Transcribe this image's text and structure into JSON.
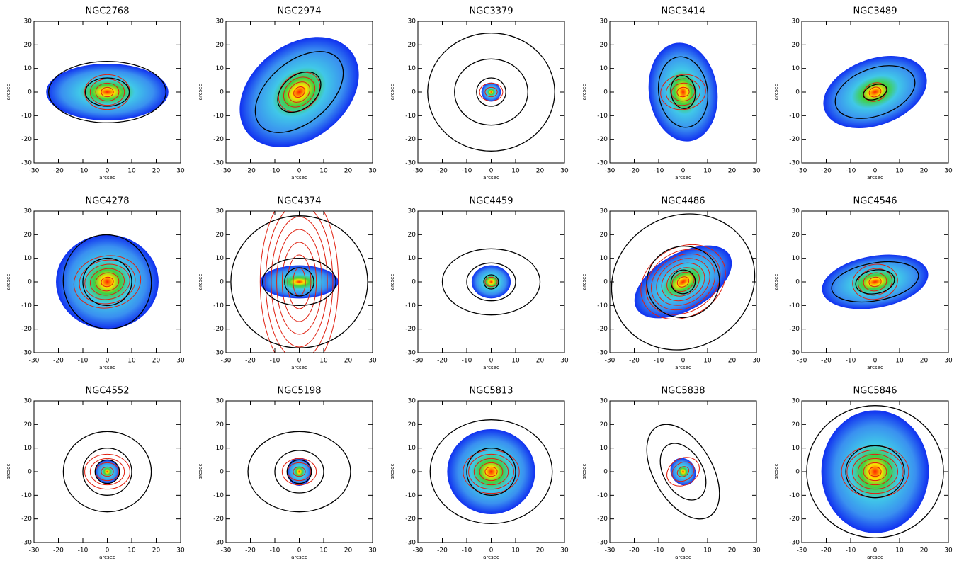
{
  "chart_data": [
    {
      "type": "image",
      "title": "NGC2768",
      "xlabel": "arcsec",
      "ylabel": "arcsec",
      "xlim": [
        -30,
        30
      ],
      "ylim": [
        -30,
        30
      ],
      "xticks": [
        -30,
        -20,
        -10,
        0,
        10,
        20,
        30
      ],
      "yticks": [
        -30,
        -20,
        -10,
        0,
        10,
        20,
        30
      ]
    },
    {
      "type": "image",
      "title": "NGC2974",
      "xlabel": "arcsec",
      "ylabel": "arcsec",
      "xlim": [
        -30,
        30
      ],
      "ylim": [
        -30,
        30
      ],
      "xticks": [
        -30,
        -20,
        -10,
        0,
        10,
        20,
        30
      ],
      "yticks": [
        -30,
        -20,
        -10,
        0,
        10,
        20,
        30
      ]
    },
    {
      "type": "image",
      "title": "NGC3379",
      "xlabel": "arcsec",
      "ylabel": "arcsec",
      "xlim": [
        -30,
        30
      ],
      "ylim": [
        -30,
        30
      ],
      "xticks": [
        -30,
        -20,
        -10,
        0,
        10,
        20,
        30
      ],
      "yticks": [
        -30,
        -20,
        -10,
        0,
        10,
        20,
        30
      ]
    },
    {
      "type": "image",
      "title": "NGC3414",
      "xlabel": "arcsec",
      "ylabel": "arcsec",
      "xlim": [
        -30,
        30
      ],
      "ylim": [
        -30,
        30
      ],
      "xticks": [
        -30,
        -20,
        -10,
        0,
        10,
        20,
        30
      ],
      "yticks": [
        -30,
        -20,
        -10,
        0,
        10,
        20,
        30
      ]
    },
    {
      "type": "image",
      "title": "NGC3489",
      "xlabel": "arcsec",
      "ylabel": "arcsec",
      "xlim": [
        -30,
        30
      ],
      "ylim": [
        -30,
        30
      ],
      "xticks": [
        -30,
        -20,
        -10,
        0,
        10,
        20,
        30
      ],
      "yticks": [
        -30,
        -20,
        -10,
        0,
        10,
        20,
        30
      ]
    },
    {
      "type": "image",
      "title": "NGC4278",
      "xlabel": "arcsec",
      "ylabel": "arcsec",
      "xlim": [
        -30,
        30
      ],
      "ylim": [
        -30,
        30
      ],
      "xticks": [
        -30,
        -20,
        -10,
        0,
        10,
        20,
        30
      ],
      "yticks": [
        -30,
        -20,
        -10,
        0,
        10,
        20,
        30
      ]
    },
    {
      "type": "image",
      "title": "NGC4374",
      "xlabel": "arcsec",
      "ylabel": "arcsec",
      "xlim": [
        -30,
        30
      ],
      "ylim": [
        -30,
        30
      ],
      "xticks": [
        -30,
        -20,
        -10,
        0,
        10,
        20,
        30
      ],
      "yticks": [
        -30,
        -20,
        -10,
        0,
        10,
        20,
        30
      ]
    },
    {
      "type": "image",
      "title": "NGC4459",
      "xlabel": "arcsec",
      "ylabel": "arcsec",
      "xlim": [
        -30,
        30
      ],
      "ylim": [
        -30,
        30
      ],
      "xticks": [
        -30,
        -20,
        -10,
        0,
        10,
        20,
        30
      ],
      "yticks": [
        -30,
        -20,
        -10,
        0,
        10,
        20,
        30
      ]
    },
    {
      "type": "image",
      "title": "NGC4486",
      "xlabel": "arcsec",
      "ylabel": "arcsec",
      "xlim": [
        -30,
        30
      ],
      "ylim": [
        -30,
        30
      ],
      "xticks": [
        -30,
        -20,
        -10,
        0,
        10,
        20,
        30
      ],
      "yticks": [
        -30,
        -20,
        -10,
        0,
        10,
        20,
        30
      ]
    },
    {
      "type": "image",
      "title": "NGC4546",
      "xlabel": "arcsec",
      "ylabel": "arcsec",
      "xlim": [
        -30,
        30
      ],
      "ylim": [
        -30,
        30
      ],
      "xticks": [
        -30,
        -20,
        -10,
        0,
        10,
        20,
        30
      ],
      "yticks": [
        -30,
        -20,
        -10,
        0,
        10,
        20,
        30
      ]
    },
    {
      "type": "image",
      "title": "NGC4552",
      "xlabel": "arcsec",
      "ylabel": "arcsec",
      "xlim": [
        -30,
        30
      ],
      "ylim": [
        -30,
        30
      ],
      "xticks": [
        -30,
        -20,
        -10,
        0,
        10,
        20,
        30
      ],
      "yticks": [
        -30,
        -20,
        -10,
        0,
        10,
        20,
        30
      ]
    },
    {
      "type": "image",
      "title": "NGC5198",
      "xlabel": "arcsec",
      "ylabel": "arcsec",
      "xlim": [
        -30,
        30
      ],
      "ylim": [
        -30,
        30
      ],
      "xticks": [
        -30,
        -20,
        -10,
        0,
        10,
        20,
        30
      ],
      "yticks": [
        -30,
        -20,
        -10,
        0,
        10,
        20,
        30
      ]
    },
    {
      "type": "image",
      "title": "NGC5813",
      "xlabel": "arcsec",
      "ylabel": "arcsec",
      "xlim": [
        -30,
        30
      ],
      "ylim": [
        -30,
        30
      ],
      "xticks": [
        -30,
        -20,
        -10,
        0,
        10,
        20,
        30
      ],
      "yticks": [
        -30,
        -20,
        -10,
        0,
        10,
        20,
        30
      ]
    },
    {
      "type": "image",
      "title": "NGC5838",
      "xlabel": "arcsec",
      "ylabel": "arcsec",
      "xlim": [
        -30,
        30
      ],
      "ylim": [
        -30,
        30
      ],
      "xticks": [
        -30,
        -20,
        -10,
        0,
        10,
        20,
        30
      ],
      "yticks": [
        -30,
        -20,
        -10,
        0,
        10,
        20,
        30
      ]
    },
    {
      "type": "image",
      "title": "NGC5846",
      "xlabel": "arcsec",
      "ylabel": "arcsec",
      "xlim": [
        -30,
        30
      ],
      "ylim": [
        -30,
        30
      ],
      "xticks": [
        -30,
        -20,
        -10,
        0,
        10,
        20,
        30
      ],
      "yticks": [
        -30,
        -20,
        -10,
        0,
        10,
        20,
        30
      ]
    }
  ]
}
